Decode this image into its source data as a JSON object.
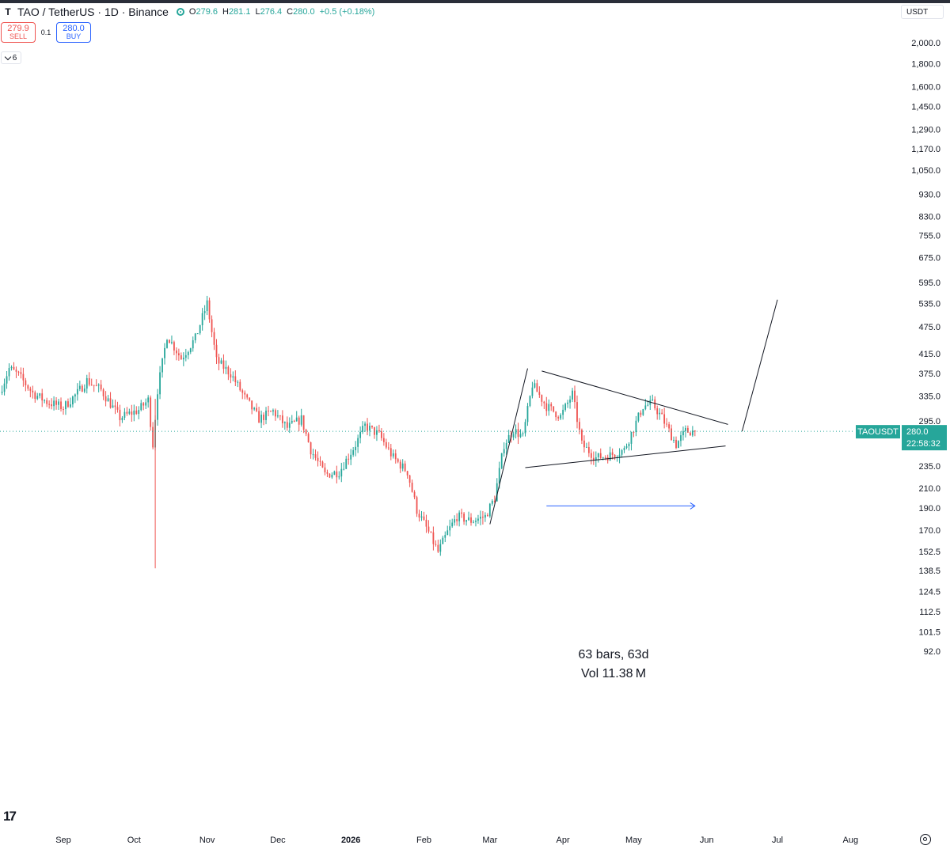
{
  "header": {
    "logo": "T",
    "title": "TAO / TetherUS · 1D · Binance",
    "ohlc": [
      {
        "k": "O",
        "v": "279.6"
      },
      {
        "k": "H",
        "v": "281.1"
      },
      {
        "k": "L",
        "v": "276.4"
      },
      {
        "k": "C",
        "v": "280.0"
      },
      {
        "k": "",
        "v": "+0.5 (+0.18%)"
      }
    ]
  },
  "trade": {
    "sell_price": "279.9",
    "sell_label": "SELL",
    "spread": "0.1",
    "buy_price": "280.0",
    "buy_label": "BUY"
  },
  "indicators_count": "6",
  "currency": "USDT",
  "symbol_tag": "TAOUSDT",
  "last_price": "280.0",
  "countdown": "22:58:32",
  "measure": {
    "bars_text": "63 bars, 63d",
    "vol_text": "Vol 11.38 M"
  },
  "colors": {
    "up": "#26a69a",
    "down": "#ef5350",
    "measure": "#2962ff",
    "line": "#131722",
    "price_line": "#26a69a"
  },
  "chart_data": {
    "type": "candlestick",
    "symbol": "TAO / TetherUS",
    "interval": "1D",
    "exchange": "Binance",
    "scale": "log",
    "yticks": [
      2000.0,
      1800.0,
      1600.0,
      1450.0,
      1290.0,
      1170.0,
      1050.0,
      930.0,
      830.0,
      755.0,
      675.0,
      595.0,
      535.0,
      475.0,
      415.0,
      375.0,
      335.0,
      295.0,
      235.0,
      210.0,
      190.0,
      170.0,
      152.5,
      138.5,
      124.5,
      112.5,
      101.5,
      92.0
    ],
    "yticklabels": [
      "2,000.0",
      "1,800.0",
      "1,600.0",
      "1,450.0",
      "1,290.0",
      "1,170.0",
      "1,050.0",
      "930.0",
      "830.0",
      "755.0",
      "675.0",
      "595.0",
      "535.0",
      "475.0",
      "415.0",
      "375.0",
      "335.0",
      "295.0",
      "235.0",
      "210.0",
      "190.0",
      "170.0",
      "152.5",
      "138.5",
      "124.5",
      "112.5",
      "101.5",
      "92.0"
    ],
    "xlabels": [
      "Sep",
      "Oct",
      "Nov",
      "Dec",
      "2026",
      "Feb",
      "Mar",
      "Apr",
      "May",
      "Jun",
      "Jul",
      "Aug"
    ],
    "xlabel_dates": [
      "2025-09-01",
      "2025-10-01",
      "2025-11-01",
      "2025-12-01",
      "2026-01-01",
      "2026-02-01",
      "2026-03-01",
      "2026-04-01",
      "2026-05-01",
      "2026-06-01",
      "2026-07-01",
      "2026-08-01"
    ],
    "price_path": [
      [
        "2025-08-06",
        340
      ],
      [
        "2025-08-10",
        385
      ],
      [
        "2025-08-14",
        372
      ],
      [
        "2025-08-20",
        340
      ],
      [
        "2025-08-26",
        325
      ],
      [
        "2025-09-02",
        316
      ],
      [
        "2025-09-08",
        340
      ],
      [
        "2025-09-12",
        362
      ],
      [
        "2025-09-18",
        345
      ],
      [
        "2025-09-26",
        300
      ],
      [
        "2025-10-04",
        312
      ],
      [
        "2025-10-08",
        328
      ],
      [
        "2025-10-10",
        262
      ],
      [
        "2025-10-12",
        345
      ],
      [
        "2025-10-16",
        455
      ],
      [
        "2025-10-22",
        405
      ],
      [
        "2025-10-28",
        448
      ],
      [
        "2025-11-02",
        535
      ],
      [
        "2025-11-06",
        400
      ],
      [
        "2025-11-12",
        375
      ],
      [
        "2025-11-18",
        332
      ],
      [
        "2025-11-24",
        298
      ],
      [
        "2025-11-30",
        310
      ],
      [
        "2025-12-06",
        285
      ],
      [
        "2025-12-12",
        298
      ],
      [
        "2025-12-16",
        255
      ],
      [
        "2025-12-22",
        225
      ],
      [
        "2025-12-28",
        228
      ],
      [
        "2026-01-04",
        262
      ],
      [
        "2026-01-08",
        288
      ],
      [
        "2026-01-14",
        275
      ],
      [
        "2026-01-20",
        245
      ],
      [
        "2026-01-26",
        228
      ],
      [
        "2026-01-30",
        188
      ],
      [
        "2026-02-04",
        168
      ],
      [
        "2026-02-08",
        152
      ],
      [
        "2026-02-12",
        168
      ],
      [
        "2026-02-16",
        182
      ],
      [
        "2026-02-22",
        178
      ],
      [
        "2026-02-28",
        182
      ],
      [
        "2026-03-04",
        200
      ],
      [
        "2026-03-08",
        262
      ],
      [
        "2026-03-12",
        282
      ],
      [
        "2026-03-16",
        272
      ],
      [
        "2026-03-20",
        355
      ],
      [
        "2026-03-26",
        318
      ],
      [
        "2026-04-01",
        302
      ],
      [
        "2026-04-06",
        338
      ],
      [
        "2026-04-10",
        262
      ],
      [
        "2026-04-16",
        245
      ],
      [
        "2026-04-22",
        248
      ],
      [
        "2026-04-28",
        255
      ],
      [
        "2026-05-06",
        318
      ],
      [
        "2026-05-10",
        322
      ],
      [
        "2026-05-14",
        300
      ],
      [
        "2026-05-20",
        262
      ],
      [
        "2026-05-24",
        280
      ],
      [
        "2026-05-27",
        280
      ]
    ],
    "spike": {
      "date": "2025-10-10",
      "high": 330,
      "low": 140
    },
    "drawings": [
      {
        "name": "impulse-pole",
        "from": [
          "2026-03-01",
          175
        ],
        "to": [
          "2026-03-17",
          385
        ]
      },
      {
        "name": "triangle-upper",
        "from": [
          "2026-03-23",
          380
        ],
        "to": [
          "2026-06-10",
          290
        ]
      },
      {
        "name": "triangle-lower",
        "from": [
          "2026-03-16",
          233
        ],
        "to": [
          "2026-06-09",
          260
        ]
      },
      {
        "name": "projected-breakout",
        "from": [
          "2026-06-16",
          280
        ],
        "to": [
          "2026-07-01",
          545
        ]
      }
    ],
    "measure_range": {
      "from": "2026-03-25",
      "to": "2026-05-27",
      "price": 192
    },
    "last_price": 280.0
  }
}
